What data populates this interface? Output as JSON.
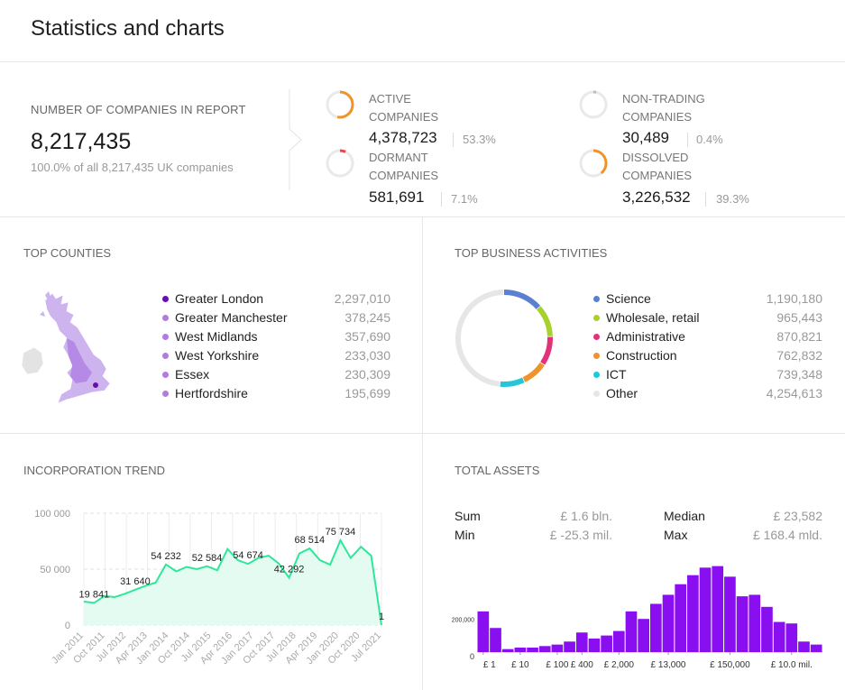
{
  "page": {
    "title": "Statistics and charts"
  },
  "summary": {
    "total_label": "NUMBER OF COMPANIES IN REPORT",
    "total_value": "8,217,435",
    "total_sub": "100.0% of all 8,217,435 UK companies",
    "statuses": [
      {
        "label_line1": "ACTIVE",
        "label_line2": "COMPANIES",
        "value": "4,378,723",
        "percent": "53.3%",
        "fraction": 0.533,
        "color": "#f0942a"
      },
      {
        "label_line1": "NON-TRADING",
        "label_line2": "COMPANIES",
        "value": "30,489",
        "percent": "0.4%",
        "fraction": 0.004,
        "color": "#bdbdbd"
      },
      {
        "label_line1": "DORMANT",
        "label_line2": "COMPANIES",
        "value": "581,691",
        "percent": "7.1%",
        "fraction": 0.071,
        "color": "#e8474c"
      },
      {
        "label_line1": "DISSOLVED",
        "label_line2": "COMPANIES",
        "value": "3,226,532",
        "percent": "39.3%",
        "fraction": 0.393,
        "color": "#f0942a"
      }
    ]
  },
  "counties": {
    "title": "TOP COUNTIES",
    "items": [
      {
        "name": "Greater London",
        "value": "2,297,010",
        "color": "#6a0dad"
      },
      {
        "name": "Greater Manchester",
        "value": "378,245",
        "color": "#b17be0"
      },
      {
        "name": "West Midlands",
        "value": "357,690",
        "color": "#b17be0"
      },
      {
        "name": "West Yorkshire",
        "value": "233,030",
        "color": "#b17be0"
      },
      {
        "name": "Essex",
        "value": "230,309",
        "color": "#b17be0"
      },
      {
        "name": "Hertfordshire",
        "value": "195,699",
        "color": "#b17be0"
      }
    ]
  },
  "activities": {
    "title": "TOP BUSINESS ACTIVITIES",
    "items": [
      {
        "name": "Science",
        "value": "1,190,180",
        "num": 1190180,
        "color": "#5b7fd1"
      },
      {
        "name": "Wholesale, retail",
        "value": "965,443",
        "num": 965443,
        "color": "#a8d12e"
      },
      {
        "name": "Administrative",
        "value": "870,821",
        "num": 870821,
        "color": "#e2337a"
      },
      {
        "name": "Construction",
        "value": "762,832",
        "num": 762832,
        "color": "#f0942a"
      },
      {
        "name": "ICT",
        "value": "739,348",
        "num": 739348,
        "color": "#26c6da"
      },
      {
        "name": "Other",
        "value": "4,254,613",
        "num": 4254613,
        "color": "#e6e6e6"
      }
    ]
  },
  "trend": {
    "title": "INCORPORATION TREND",
    "y_ticks": [
      "100 000",
      "50 000",
      "0"
    ],
    "x_ticks": [
      "Jan 2011",
      "Oct 2011",
      "Jul 2012",
      "Apr 2013",
      "Jan 2014",
      "Oct 2014",
      "Jul 2015",
      "Apr 2016",
      "Jan 2017",
      "Oct 2017",
      "Jul 2018",
      "Apr 2019",
      "Jan 2020",
      "Oct 2020",
      "Jul 2021"
    ],
    "annotations": [
      "19 841",
      "31 640",
      "54 232",
      "52 584",
      "54 674",
      "42 292",
      "68 514",
      "75 734",
      "1"
    ],
    "line_color": "#2ee89a",
    "fill_color": "#e3fbf0"
  },
  "assets": {
    "title": "TOTAL ASSETS",
    "stats": [
      {
        "key": "Sum",
        "value": "£ 1.6 bln."
      },
      {
        "key": "Median",
        "value": "£ 23,582"
      },
      {
        "key": "Min",
        "value": "£ -25.3 mil."
      },
      {
        "key": "Max",
        "value": "£ 168.4 mld."
      }
    ],
    "y_ticks": [
      "200,000",
      "0"
    ],
    "x_ticks": [
      "£ 1",
      "£ 10",
      "£ 100",
      "£ 400",
      "£ 2,000",
      "£ 13,000",
      "£ 150,000",
      "£ 10.0 mil."
    ],
    "bar_color": "#8a0ff0"
  },
  "chart_data": [
    {
      "type": "line",
      "title": "INCORPORATION TREND",
      "xlabel": "",
      "ylabel": "",
      "ylim": [
        0,
        100000
      ],
      "grid": true,
      "x": [
        "Jan 2011",
        "Jul 2011",
        "Oct 2011",
        "Jan 2012",
        "Jul 2012",
        "Jan 2013",
        "Apr 2013",
        "Oct 2013",
        "Jan 2014",
        "Jul 2014",
        "Oct 2014",
        "Jan 2015",
        "Jul 2015",
        "Jan 2016",
        "Apr 2016",
        "Oct 2016",
        "Jan 2017",
        "Jul 2017",
        "Oct 2017",
        "Jan 2018",
        "Jul 2018",
        "Oct 2018",
        "Apr 2019",
        "Oct 2019",
        "Jan 2020",
        "Jul 2020",
        "Oct 2020",
        "Jan 2021",
        "Jul 2021",
        "Oct 2021"
      ],
      "series": [
        {
          "values": [
            21000,
            19841,
            26000,
            25000,
            28000,
            31640,
            35000,
            38000,
            54232,
            48000,
            52000,
            50000,
            52584,
            49000,
            68000,
            58000,
            54674,
            60000,
            62000,
            55000,
            42292,
            64000,
            68514,
            58000,
            54000,
            75734,
            60000,
            70000,
            62000,
            1
          ]
        }
      ],
      "labels": [
        {
          "x": "Jul 2011",
          "value": 19841,
          "text": "19 841"
        },
        {
          "x": "Jan 2013",
          "value": 31640,
          "text": "31 640"
        },
        {
          "x": "Jan 2014",
          "value": 54232,
          "text": "54 232"
        },
        {
          "x": "Jul 2015",
          "value": 52584,
          "text": "52 584"
        },
        {
          "x": "Jan 2017",
          "value": 54674,
          "text": "54 674"
        },
        {
          "x": "Jul 2018",
          "value": 42292,
          "text": "42 292"
        },
        {
          "x": "Apr 2019",
          "value": 68514,
          "text": "68 514"
        },
        {
          "x": "Jul 2020",
          "value": 75734,
          "text": "75 734"
        },
        {
          "x": "Oct 2021",
          "value": 1,
          "text": "1"
        }
      ]
    },
    {
      "type": "bar",
      "title": "TOTAL ASSETS",
      "xlabel": "",
      "ylabel": "",
      "ylim": [
        0,
        550000
      ],
      "categories": [
        "£ 1",
        "",
        "",
        "£ 10",
        "",
        "",
        "£ 100",
        "",
        "£ 400",
        "",
        "",
        "£ 2,000",
        "",
        "",
        "",
        "£ 13,000",
        "",
        "",
        "",
        "",
        "£ 150,000",
        "",
        "",
        "",
        "",
        "£ 10.0 mil.",
        "",
        ""
      ],
      "values": [
        270000,
        160000,
        20000,
        30000,
        30000,
        40000,
        50000,
        70000,
        130000,
        90000,
        110000,
        140000,
        270000,
        220000,
        320000,
        380000,
        450000,
        510000,
        560000,
        570000,
        500000,
        370000,
        380000,
        300000,
        200000,
        190000,
        70000,
        50000
      ]
    }
  ]
}
